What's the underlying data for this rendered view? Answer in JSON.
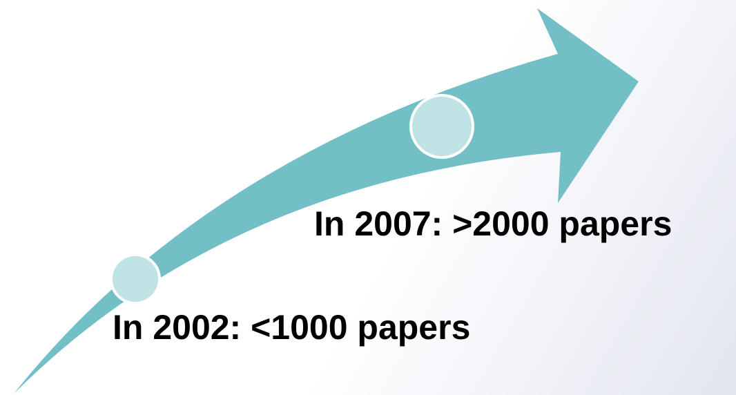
{
  "milestones": [
    {
      "label": "In 2002: <1000 papers"
    },
    {
      "label": "In 2007: >2000 papers"
    }
  ],
  "colors": {
    "arrow": "#72bfc5",
    "marker_fill": "#bfe3e4",
    "marker_stroke": "#ffffff",
    "text": "#000000"
  }
}
